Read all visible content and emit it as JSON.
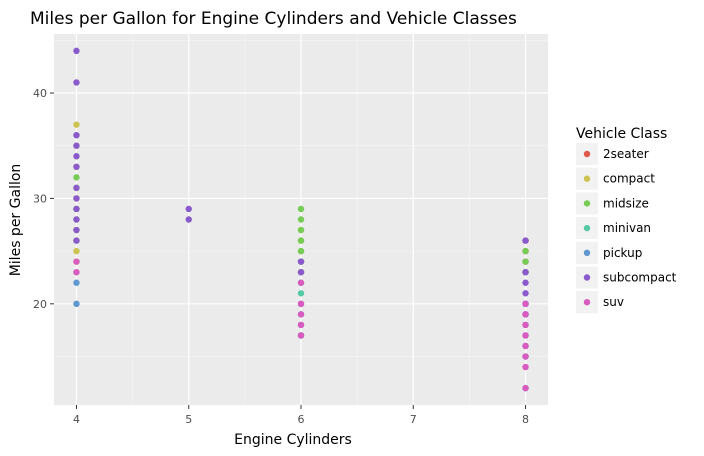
{
  "chart_data": {
    "type": "scatter",
    "title": "Miles per Gallon for Engine Cylinders and Vehicle Classes",
    "xlabel": "Engine Cylinders",
    "ylabel": "Miles per Gallon",
    "xlim": [
      3.8,
      8.2
    ],
    "ylim": [
      10.4,
      45.6
    ],
    "x_ticks": [
      4,
      5,
      6,
      7,
      8
    ],
    "y_ticks": [
      20,
      30,
      40
    ],
    "grid": true,
    "legend": {
      "title": "Vehicle Class",
      "placement": "right"
    },
    "panel_color": "#ebebeb",
    "series": [
      {
        "name": "2seater",
        "color": "#e0584a",
        "points": [
          [
            8,
            26
          ],
          [
            8,
            24
          ],
          [
            8,
            23
          ],
          [
            8,
            25
          ]
        ]
      },
      {
        "name": "compact",
        "color": "#cec352",
        "points": [
          [
            4,
            37
          ],
          [
            4,
            35
          ],
          [
            4,
            33
          ],
          [
            4,
            31
          ],
          [
            4,
            30
          ],
          [
            4,
            29
          ],
          [
            4,
            27
          ],
          [
            4,
            25
          ],
          [
            4,
            24
          ],
          [
            6,
            27
          ],
          [
            6,
            26
          ],
          [
            6,
            25
          ],
          [
            6,
            24
          ],
          [
            6,
            23
          ]
        ]
      },
      {
        "name": "midsize",
        "color": "#76cc55",
        "points": [
          [
            4,
            32
          ],
          [
            4,
            31
          ],
          [
            4,
            29
          ],
          [
            4,
            28
          ],
          [
            4,
            27
          ],
          [
            4,
            26
          ],
          [
            6,
            29
          ],
          [
            6,
            28
          ],
          [
            6,
            27
          ],
          [
            6,
            26
          ],
          [
            6,
            25
          ],
          [
            6,
            24
          ],
          [
            6,
            23
          ],
          [
            8,
            25
          ],
          [
            8,
            24
          ],
          [
            8,
            23
          ]
        ]
      },
      {
        "name": "minivan",
        "color": "#55c9a6",
        "points": [
          [
            6,
            24
          ],
          [
            6,
            23
          ],
          [
            6,
            22
          ],
          [
            6,
            21
          ],
          [
            6,
            17
          ]
        ]
      },
      {
        "name": "pickup",
        "color": "#5e97d1",
        "points": [
          [
            4,
            22
          ],
          [
            4,
            20
          ],
          [
            6,
            20
          ],
          [
            6,
            19
          ],
          [
            6,
            18
          ],
          [
            6,
            17
          ],
          [
            8,
            20
          ],
          [
            8,
            19
          ],
          [
            8,
            18
          ],
          [
            8,
            17
          ],
          [
            8,
            16
          ],
          [
            8,
            15
          ],
          [
            8,
            12
          ]
        ]
      },
      {
        "name": "subcompact",
        "color": "#8a5acd",
        "points": [
          [
            4,
            44
          ],
          [
            4,
            41
          ],
          [
            4,
            36
          ],
          [
            4,
            35
          ],
          [
            4,
            34
          ],
          [
            4,
            33
          ],
          [
            4,
            31
          ],
          [
            4,
            30
          ],
          [
            4,
            29
          ],
          [
            4,
            28
          ],
          [
            4,
            27
          ],
          [
            4,
            26
          ],
          [
            5,
            29
          ],
          [
            5,
            28
          ],
          [
            6,
            24
          ],
          [
            6,
            23
          ],
          [
            8,
            26
          ],
          [
            8,
            23
          ],
          [
            8,
            22
          ],
          [
            8,
            21
          ],
          [
            8,
            20
          ],
          [
            8,
            19
          ]
        ]
      },
      {
        "name": "suv",
        "color": "#d85bbf",
        "points": [
          [
            4,
            24
          ],
          [
            4,
            23
          ],
          [
            6,
            22
          ],
          [
            6,
            20
          ],
          [
            6,
            19
          ],
          [
            6,
            18
          ],
          [
            6,
            17
          ],
          [
            8,
            20
          ],
          [
            8,
            19
          ],
          [
            8,
            18
          ],
          [
            8,
            17
          ],
          [
            8,
            16
          ],
          [
            8,
            15
          ],
          [
            8,
            14
          ],
          [
            8,
            12
          ]
        ]
      }
    ]
  }
}
